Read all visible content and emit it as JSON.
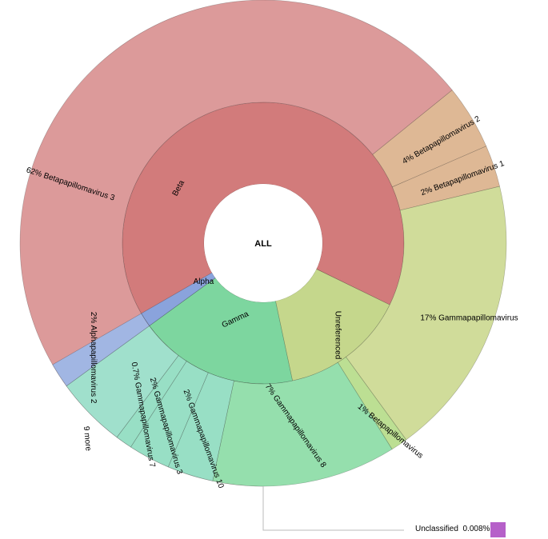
{
  "chart_data": {
    "type": "sunburst",
    "root_label": "ALL",
    "rings": [
      {
        "level": 1,
        "segments": [
          {
            "label": "Beta",
            "percent": 79,
            "color": "#d27b7b"
          },
          {
            "label": "Unreferenced",
            "percent": 18,
            "color": "#c5d78c"
          },
          {
            "label": "Gamma",
            "percent": 12,
            "color": "#7dd69f"
          },
          {
            "label": "Alpha",
            "percent": 2,
            "color": "#8aa3dc"
          }
        ]
      },
      {
        "level": 2,
        "segments": [
          {
            "label": "Betapapillomavirus 3",
            "percent": 62,
            "percent_label": "62%",
            "parent": "Beta",
            "color": "#dc9a9a"
          },
          {
            "label": "Betapapillomavirus 2",
            "percent": 4,
            "percent_label": "4%",
            "parent": "Beta",
            "color": "#deb895"
          },
          {
            "label": "Betapapillomavirus 1",
            "percent": 2,
            "percent_label": "2%",
            "parent": "Beta",
            "color": "#deb895"
          },
          {
            "label": "Gammapapillomavirus",
            "percent": 17,
            "percent_label": "17%",
            "parent": "Unreferenced",
            "color": "#d0dc9a"
          },
          {
            "label": "Betapapillomavirus",
            "percent": 1,
            "percent_label": "1%",
            "parent": "Unreferenced",
            "color": "#bcdf93"
          },
          {
            "label": "Gammapapillomavirus 8",
            "percent": 7,
            "percent_label": "7%",
            "parent": "Gamma",
            "color": "#95dfad"
          },
          {
            "label": "Gammapapillomavirus 10",
            "percent": 2,
            "percent_label": "2%",
            "parent": "Gamma",
            "color": "#98dfc5"
          },
          {
            "label": "Gammapapillomavirus 3",
            "percent": 2,
            "percent_label": "2%",
            "parent": "Gamma",
            "color": "#98dfc5"
          },
          {
            "label": "Gammapapillomavirus 7",
            "percent": 0.7,
            "percent_label": "0.7%",
            "parent": "Gamma",
            "color": "#98dfc5"
          },
          {
            "label": "9 more",
            "percent_label": "",
            "parent": "Gamma",
            "color": "#a0e0cc"
          },
          {
            "label": "Alphapapillomavirus 2",
            "percent": 2,
            "percent_label": "2%",
            "parent": "Alpha",
            "color": "#a1b6e3"
          }
        ]
      }
    ],
    "unclassified": {
      "label": "Unclassified",
      "percent": 0.008,
      "percent_label": "0.008%",
      "color": "#b660c9"
    }
  }
}
